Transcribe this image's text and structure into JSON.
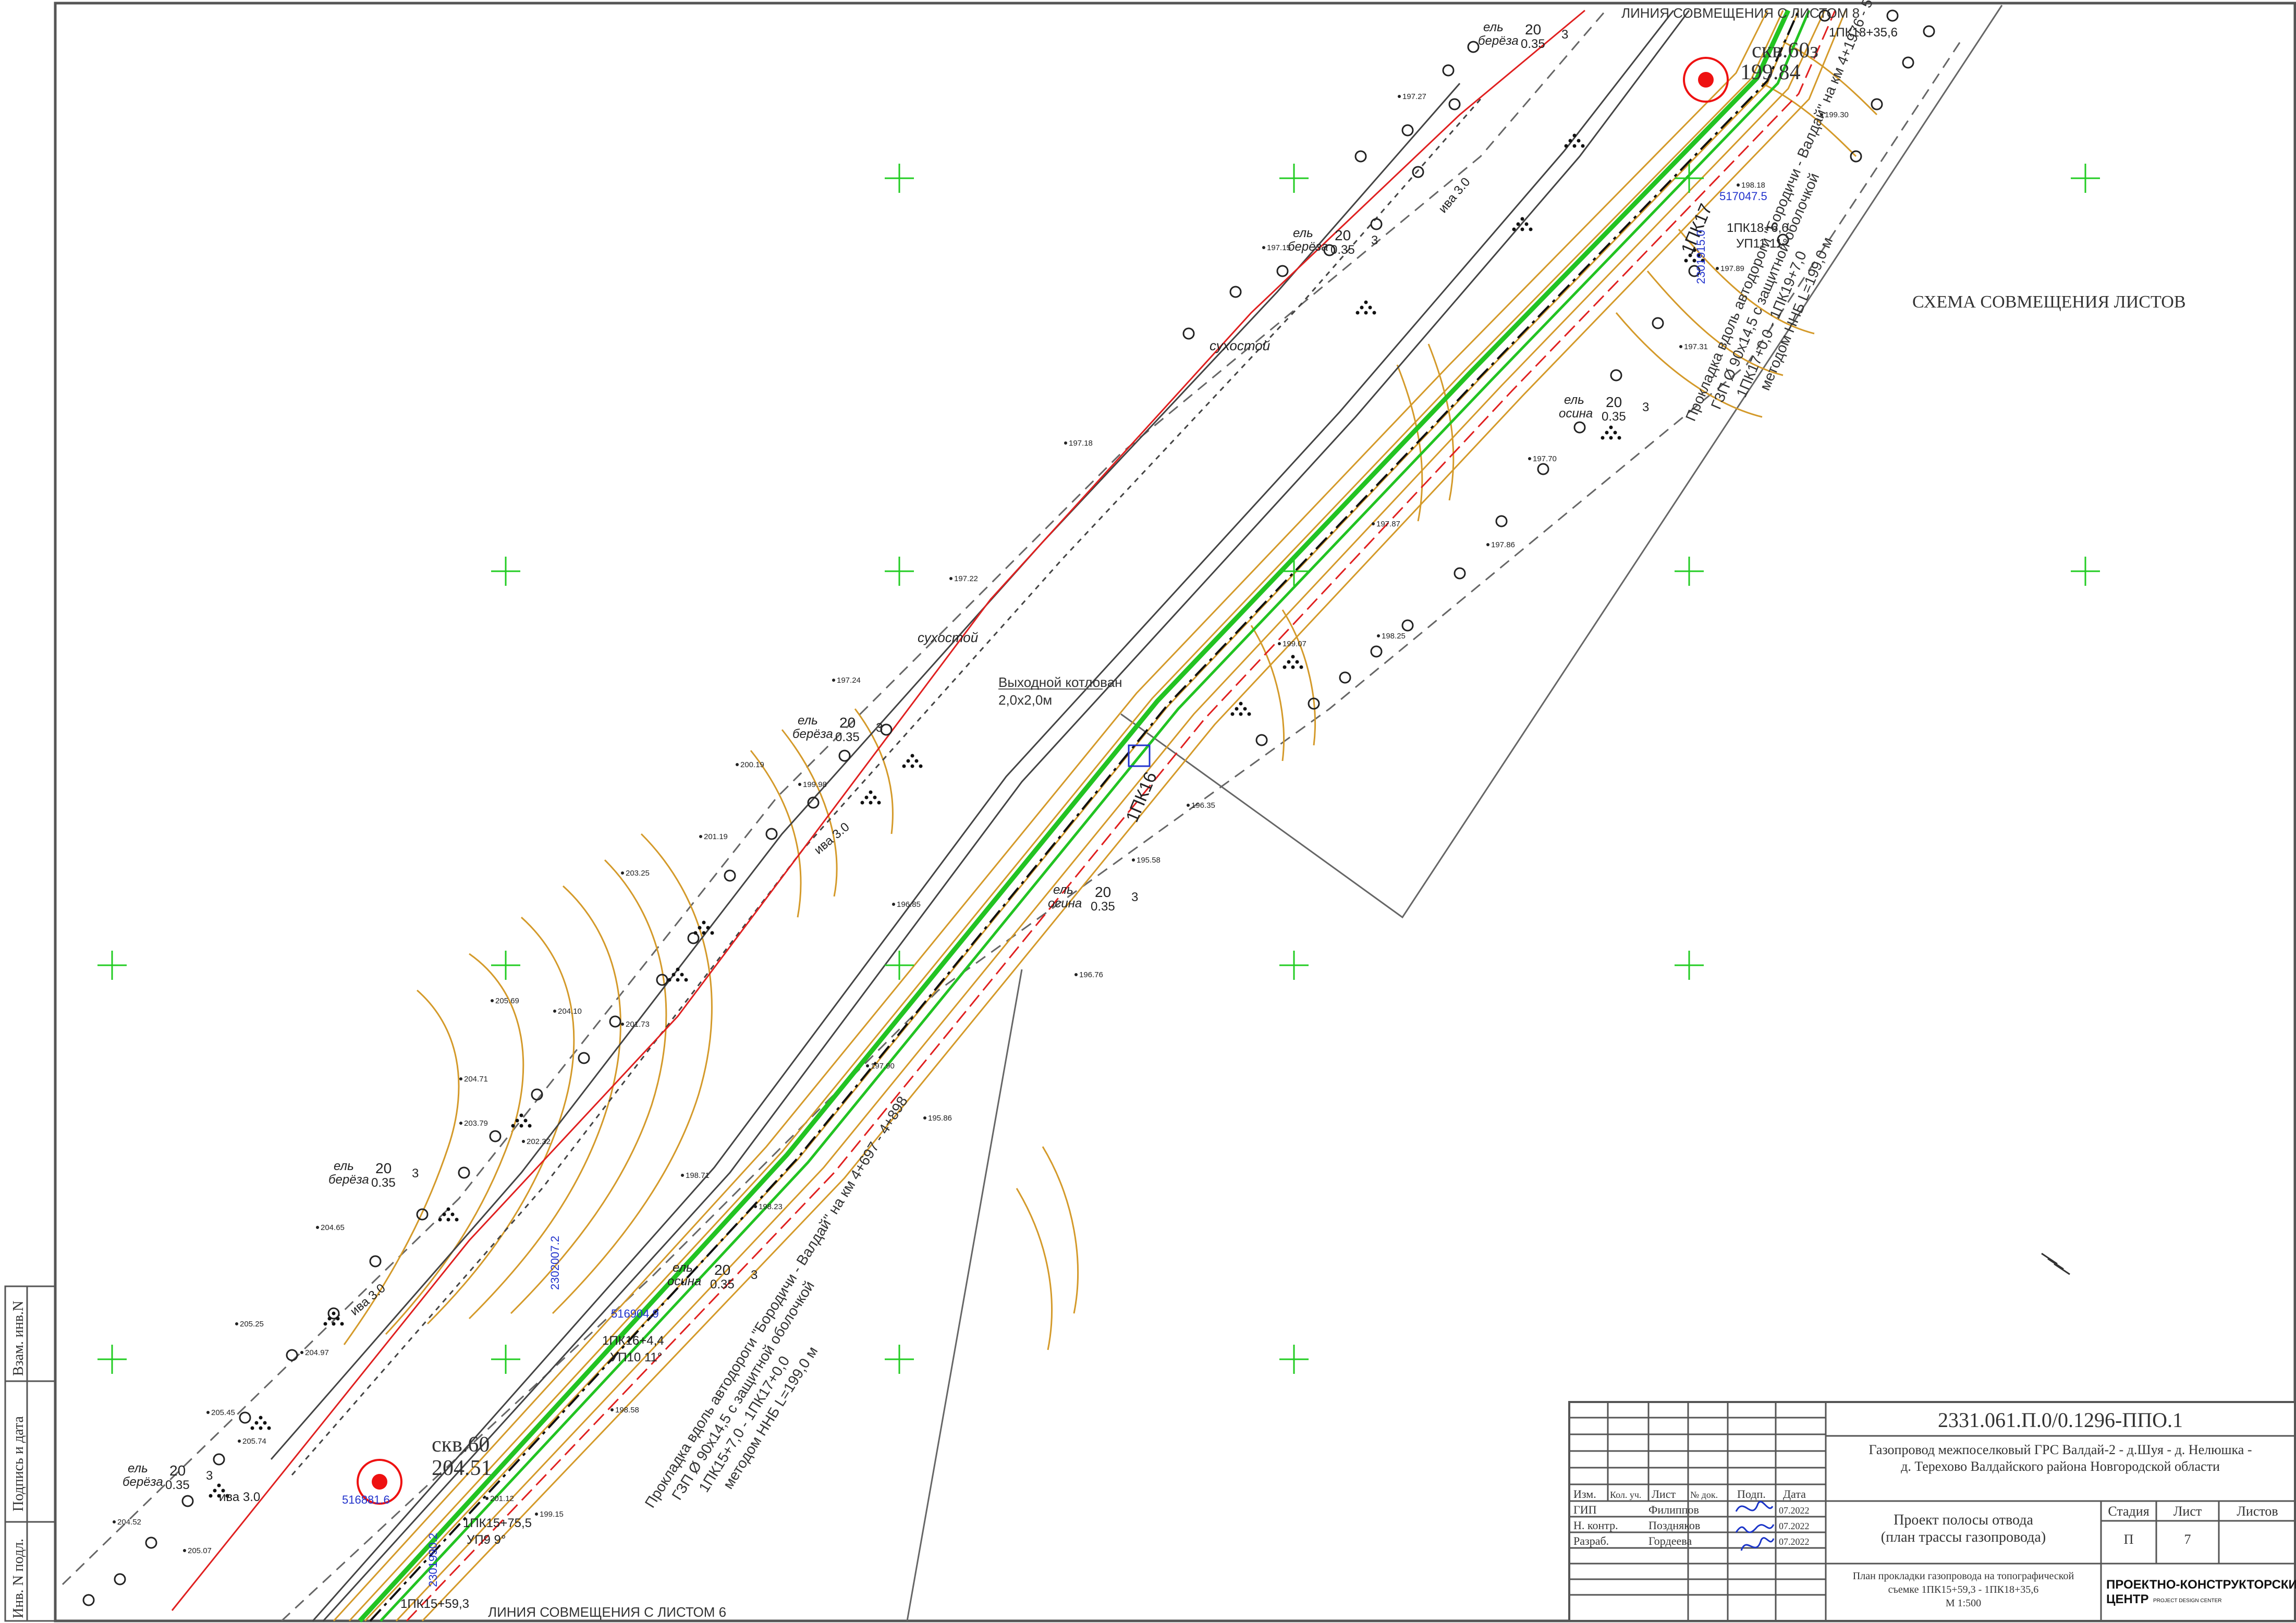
{
  "drawing": {
    "scheme_title": "СХЕМА СОВМЕЩЕНИЯ ЛИСТОВ",
    "match_line_top": "ЛИНИЯ СОВМЕЩЕНИЯ С ЛИСТОМ 8",
    "match_line_bottom": "ЛИНИЯ СОВМЕЩЕНИЯ С ЛИСТОМ 6",
    "colors": {
      "frame": "#555555",
      "pipeline_green": "#22c322",
      "road_red": "#e02020",
      "contour": "#d49a2a",
      "marker": "#ee1111",
      "annot_blue": "#2233cc",
      "crosshair": "#22cc22"
    },
    "wells": [
      {
        "name": "скв.60",
        "elev": "204.51"
      },
      {
        "name": "скв.60з",
        "elev": "199.84"
      }
    ],
    "pickets": [
      {
        "label": "1ПК18+35,6"
      },
      {
        "label": "1ПК18+6,6",
        "sub": "УП11  11°"
      },
      {
        "label": "1ПК17"
      },
      {
        "label": "1ПК16"
      },
      {
        "label": "1ПК16+4,4",
        "sub": "УП10  11°"
      },
      {
        "label": "1ПК15+75,5",
        "sub": "УП9  9°"
      },
      {
        "label": "1ПК15+59,3"
      }
    ],
    "coordinates": [
      "517047.5",
      "2301915.0",
      "516904.9",
      "2302007.2",
      "516881.6",
      "2301990.2"
    ],
    "excavation": {
      "line1": "Выходной котлован",
      "line2": "2,0х2,0м"
    },
    "note_upper": [
      "Прокладка вдоль автодороги \"Бородичи - Валдай\" на км 4+1976 - 5+097",
      "ГЗП Ø 90х14,5 с защитной оболочкой",
      "1ПК17+0,0 - 1ПК19+7,0",
      "методом ННБ L=199,0 м"
    ],
    "note_lower": [
      "Прокладка вдоль автодороги \"Бородичи - Валдай\" на км 4+697 - 4+898",
      "ГЗП Ø 90х14,5 с защитной оболочкой",
      "1ПК15+7,0 - 1ПК17+0,0",
      "методом ННБ L=199,0 м"
    ],
    "tree_labels": [
      {
        "species": "ель",
        "species2": "берёза",
        "value": "20",
        "value2": "0.35",
        "count": "3"
      },
      {
        "species": "ель",
        "species2": "берёза",
        "value": "20",
        "value2": "0.35",
        "count": "3"
      },
      {
        "species": "ель",
        "species2": "осина",
        "value": "20",
        "value2": "0.35",
        "count": "3"
      },
      {
        "species": "ель",
        "species2": "берёза",
        "value": "20",
        "value2": "0.35",
        "count": "3"
      },
      {
        "species": "ель",
        "species2": "осина",
        "value": "20",
        "value2": "0.35",
        "count": "3"
      },
      {
        "species": "ель",
        "species2": "берёза",
        "value": "20",
        "value2": "0.35",
        "count": "3"
      },
      {
        "species": "ель",
        "species2": "осина",
        "value": "20",
        "value2": "0.35",
        "count": "3"
      },
      {
        "species": "ель",
        "species2": "берёза",
        "value": "20",
        "value2": "0.35",
        "count": "3"
      }
    ],
    "dead_wood": [
      "сухостой",
      "сухостой"
    ],
    "willow": [
      "ива 3.0",
      "ива 3.0",
      "ива 3.0",
      "ива 3.0"
    ],
    "spot_elevations": [
      "197.27",
      "197.15",
      "197.18",
      "197.22",
      "197.24",
      "200.19",
      "199.98",
      "201.19",
      "203.25",
      "205.69",
      "204.10",
      "201.73",
      "204.71",
      "203.79",
      "202.32",
      "204.65",
      "205.25",
      "204.97",
      "205.45",
      "205.74",
      "204.52",
      "205.07",
      "201.12",
      "199.15",
      "198.58",
      "196.76",
      "195.58",
      "196.35",
      "199.07",
      "198.25",
      "197.86",
      "197.87",
      "197.70",
      "197.31",
      "197.89",
      "198.18",
      "199.30",
      "195.86",
      "197.90",
      "198.23",
      "198.71",
      "196.85"
    ]
  },
  "side_stamp": [
    "Взам. инв.N",
    "Подпись и дата",
    "Инв. N подл."
  ],
  "title_block": {
    "doc_code": "2331.061.П.0/0.1296-ППО.1",
    "project_line1": "Газопровод межпоселковый ГРС Валдай-2 - д.Шуя - д. Нелюшка -",
    "project_line2": "д. Терехово Валдайского района Новгородской области",
    "headers": {
      "izm": "Изм.",
      "kol": "Кол. уч.",
      "list": "Лист",
      "ndoc": "№ док.",
      "podp": "Подп.",
      "date": "Дата"
    },
    "signers": [
      {
        "role": "ГИП",
        "name": "Филиппов",
        "date": "07.2022"
      },
      {
        "role": "Н. контр.",
        "name": "Поздняков",
        "date": "07.2022"
      },
      {
        "role": "Разраб.",
        "name": "Гордеева",
        "date": "07.2022"
      }
    ],
    "doc_title_line1": "Проект полосы отвода",
    "doc_title_line2": "(план трассы газопровода)",
    "stage_header": "Стадия",
    "sheet_header": "Лист",
    "sheets_header": "Листов",
    "stage": "П",
    "sheet": "7",
    "sheets": "",
    "sheet_desc_line1": "План прокладки газопровода на топографической",
    "sheet_desc_line2": "съемке 1ПК15+59,3 - 1ПК18+35,6",
    "sheet_desc_line3": "М 1:500",
    "org_line1": "ПРОЕКТНО-КОНСТРУКТОРСКИЙ",
    "org_line2": "ЦЕНТР",
    "org_small": "PROJECT DESIGN CENTER"
  }
}
